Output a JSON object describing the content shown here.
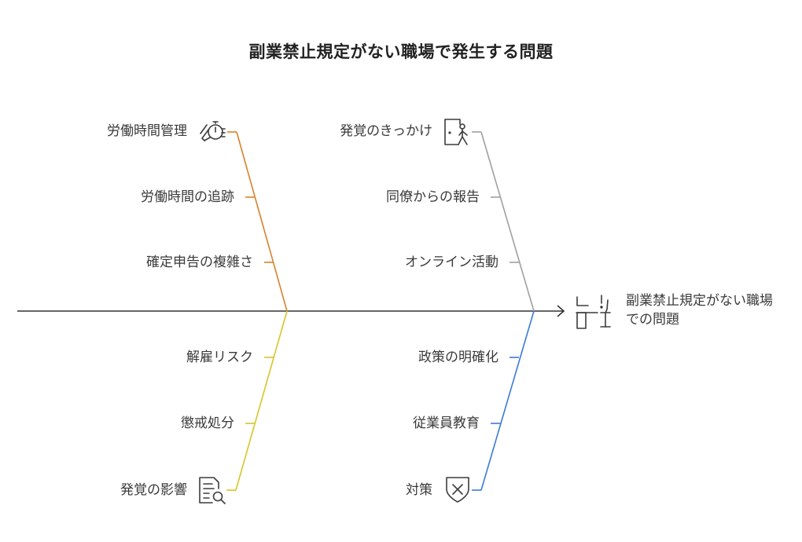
{
  "title": "副業禁止規定がない職場で発生する問題",
  "head": {
    "label": "副業禁止規定がない職場での問題",
    "icon": "desk-alert-icon"
  },
  "branches": [
    {
      "id": "top-left",
      "color": "#d9822b",
      "icon": "stopwatch-hand-icon",
      "header": "労働時間管理",
      "items": [
        "労働時間の追跡",
        "確定申告の複雑さ"
      ]
    },
    {
      "id": "top-right",
      "color": "#a0a0a0",
      "icon": "person-door-icon",
      "header": "発覚のきっかけ",
      "items": [
        "同僚からの報告",
        "オンライン活動"
      ]
    },
    {
      "id": "bottom-left",
      "color": "#d6c52a",
      "icon": "document-search-icon",
      "header": "発覚の影響",
      "items": [
        "解雇リスク",
        "懲戒処分"
      ]
    },
    {
      "id": "bottom-right",
      "color": "#3b7ad6",
      "icon": "shield-x-icon",
      "header": "対策",
      "items": [
        "政策の明確化",
        "従業員教育"
      ]
    }
  ],
  "spine_color": "#333333"
}
